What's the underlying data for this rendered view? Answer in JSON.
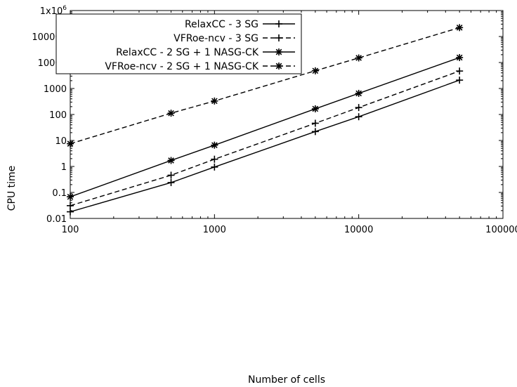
{
  "chart_data": {
    "type": "line",
    "xlabel": "Number of cells",
    "ylabel": "CPU time",
    "xscale": "log",
    "yscale": "log",
    "xlim": [
      100,
      100000
    ],
    "ylim": [
      0.01,
      1000000
    ],
    "grid": false,
    "legend_position": "top-left",
    "x_tick_labels": [
      "100",
      "1000",
      "10000",
      "100000"
    ],
    "y_tick_labels": [
      "0.01",
      "0.1",
      "1",
      "10",
      "100",
      "1000",
      "10000",
      "100000"
    ],
    "y_top_label": {
      "base": "1x10",
      "exp": "6"
    },
    "series": [
      {
        "name": "RelaxCC - 3 SG",
        "dash": "solid",
        "marker": "plus",
        "x": [
          100,
          500,
          1000,
          5000,
          10000,
          50000
        ],
        "y": [
          0.018,
          0.24,
          0.95,
          22,
          82,
          2100
        ]
      },
      {
        "name": "VFRoe-ncv - 3 SG",
        "dash": "dashed",
        "marker": "plus",
        "x": [
          100,
          500,
          1000,
          5000,
          10000,
          50000
        ],
        "y": [
          0.031,
          0.46,
          1.9,
          46,
          185,
          4700
        ]
      },
      {
        "name": "RelaxCC - 2 SG + 1 NASG-CK",
        "dash": "solid",
        "marker": "star",
        "x": [
          100,
          500,
          1000,
          5000,
          10000,
          50000
        ],
        "y": [
          0.068,
          1.7,
          6.6,
          165,
          650,
          15500
        ]
      },
      {
        "name": "VFRoe-ncv - 2 SG + 1 NASG-CK",
        "dash": "dashed",
        "marker": "star",
        "x": [
          100,
          500,
          1000,
          5000,
          10000,
          50000
        ],
        "y": [
          7.5,
          112,
          330,
          4800,
          15000,
          220000
        ]
      }
    ]
  }
}
